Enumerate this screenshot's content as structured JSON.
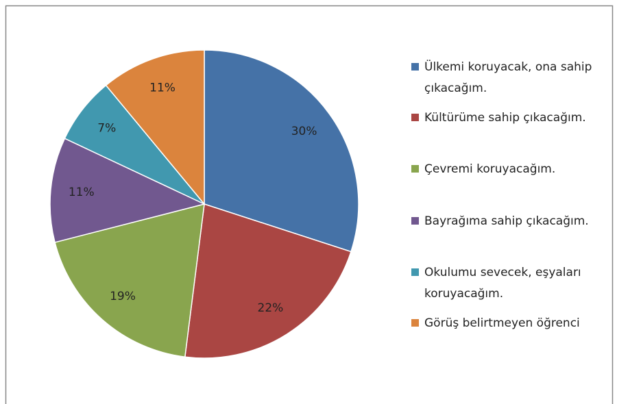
{
  "chart_data": {
    "type": "pie",
    "categories": [
      "Ülkemi koruyacak, ona sahip çıkacağım.",
      "Kültürüme sahip çıkacağım.",
      "Çevremi koruyacağım.",
      "Bayrağıma sahip çıkacağım.",
      "Okulumu sevecek, eşyaları koruyacağım.",
      "Görüş belirtmeyen öğrenci"
    ],
    "values": [
      30,
      22,
      19,
      11,
      7,
      11
    ],
    "value_labels": [
      "30%",
      "22%",
      "19%",
      "11%",
      "7%",
      "11%"
    ],
    "colors": [
      "#4572a7",
      "#aa4643",
      "#89a54e",
      "#71588f",
      "#4198af",
      "#db843d"
    ],
    "legend": "right"
  }
}
